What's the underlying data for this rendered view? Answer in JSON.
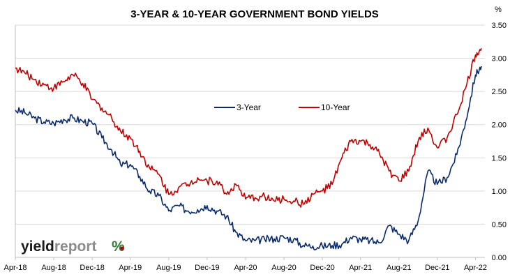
{
  "chart_data": {
    "type": "line",
    "title": "3-YEAR & 10-YEAR GOVERNMENT BOND YIELDS",
    "y_unit": "%",
    "ylim": [
      0,
      3.5
    ],
    "y_ticks": [
      "0.00",
      "0.50",
      "1.00",
      "1.50",
      "2.00",
      "2.50",
      "3.00",
      "3.50"
    ],
    "x_ticks": [
      "Apr-18",
      "Aug-18",
      "Dec-18",
      "Apr-19",
      "Aug-19",
      "Dec-19",
      "Apr-20",
      "Aug-20",
      "Dec-20",
      "Apr-21",
      "Aug-21",
      "Dec-21",
      "Apr-22"
    ],
    "grid": "horizontal",
    "legend": "center",
    "series": [
      {
        "name": "3-Year",
        "color": "#0a2a6b",
        "points": [
          [
            "2018-04-01",
            2.22
          ],
          [
            "2018-05-01",
            2.18
          ],
          [
            "2018-06-01",
            2.1
          ],
          [
            "2018-07-01",
            2.04
          ],
          [
            "2018-08-01",
            2.02
          ],
          [
            "2018-09-01",
            2.08
          ],
          [
            "2018-10-01",
            2.1
          ],
          [
            "2018-11-01",
            2.05
          ],
          [
            "2018-12-01",
            2.02
          ],
          [
            "2019-01-01",
            1.8
          ],
          [
            "2019-02-01",
            1.62
          ],
          [
            "2019-03-01",
            1.4
          ],
          [
            "2019-04-01",
            1.4
          ],
          [
            "2019-05-01",
            1.22
          ],
          [
            "2019-06-01",
            1.0
          ],
          [
            "2019-07-01",
            0.93
          ],
          [
            "2019-08-01",
            0.7
          ],
          [
            "2019-09-01",
            0.78
          ],
          [
            "2019-10-01",
            0.7
          ],
          [
            "2019-11-01",
            0.72
          ],
          [
            "2019-12-01",
            0.78
          ],
          [
            "2020-01-01",
            0.7
          ],
          [
            "2020-02-01",
            0.62
          ],
          [
            "2020-03-01",
            0.38
          ],
          [
            "2020-04-01",
            0.25
          ],
          [
            "2020-05-01",
            0.25
          ],
          [
            "2020-06-01",
            0.27
          ],
          [
            "2020-07-01",
            0.28
          ],
          [
            "2020-08-01",
            0.3
          ],
          [
            "2020-09-01",
            0.27
          ],
          [
            "2020-10-01",
            0.18
          ],
          [
            "2020-11-01",
            0.17
          ],
          [
            "2020-12-01",
            0.17
          ],
          [
            "2021-01-01",
            0.18
          ],
          [
            "2021-02-01",
            0.2
          ],
          [
            "2021-03-01",
            0.3
          ],
          [
            "2021-04-01",
            0.27
          ],
          [
            "2021-05-01",
            0.25
          ],
          [
            "2021-06-01",
            0.22
          ],
          [
            "2021-07-01",
            0.48
          ],
          [
            "2021-08-01",
            0.35
          ],
          [
            "2021-09-01",
            0.25
          ],
          [
            "2021-10-01",
            0.55
          ],
          [
            "2021-11-01",
            1.3
          ],
          [
            "2021-12-01",
            1.1
          ],
          [
            "2022-01-01",
            1.2
          ],
          [
            "2022-02-01",
            1.55
          ],
          [
            "2022-03-01",
            2.05
          ],
          [
            "2022-04-01",
            2.75
          ],
          [
            "2022-04-20",
            2.88
          ]
        ]
      },
      {
        "name": "10-Year",
        "color": "#c00000",
        "points": [
          [
            "2018-04-01",
            2.85
          ],
          [
            "2018-05-01",
            2.78
          ],
          [
            "2018-06-01",
            2.68
          ],
          [
            "2018-07-01",
            2.6
          ],
          [
            "2018-08-01",
            2.55
          ],
          [
            "2018-09-01",
            2.65
          ],
          [
            "2018-10-01",
            2.75
          ],
          [
            "2018-11-01",
            2.62
          ],
          [
            "2018-12-01",
            2.38
          ],
          [
            "2019-01-01",
            2.25
          ],
          [
            "2019-02-01",
            2.1
          ],
          [
            "2019-03-01",
            1.9
          ],
          [
            "2019-04-01",
            1.8
          ],
          [
            "2019-05-01",
            1.6
          ],
          [
            "2019-06-01",
            1.35
          ],
          [
            "2019-07-01",
            1.25
          ],
          [
            "2019-08-01",
            0.95
          ],
          [
            "2019-09-01",
            1.05
          ],
          [
            "2019-10-01",
            1.1
          ],
          [
            "2019-11-01",
            1.2
          ],
          [
            "2019-12-01",
            1.15
          ],
          [
            "2020-01-01",
            1.15
          ],
          [
            "2020-02-01",
            0.95
          ],
          [
            "2020-03-01",
            1.1
          ],
          [
            "2020-04-01",
            0.88
          ],
          [
            "2020-05-01",
            0.9
          ],
          [
            "2020-06-01",
            0.92
          ],
          [
            "2020-07-01",
            0.85
          ],
          [
            "2020-08-01",
            0.88
          ],
          [
            "2020-09-01",
            0.85
          ],
          [
            "2020-10-01",
            0.8
          ],
          [
            "2020-11-01",
            0.95
          ],
          [
            "2020-12-01",
            1.0
          ],
          [
            "2021-01-01",
            1.1
          ],
          [
            "2021-02-01",
            1.5
          ],
          [
            "2021-03-01",
            1.75
          ],
          [
            "2021-04-01",
            1.75
          ],
          [
            "2021-05-01",
            1.7
          ],
          [
            "2021-06-01",
            1.55
          ],
          [
            "2021-07-01",
            1.3
          ],
          [
            "2021-08-01",
            1.15
          ],
          [
            "2021-09-01",
            1.3
          ],
          [
            "2021-10-01",
            1.75
          ],
          [
            "2021-11-01",
            1.95
          ],
          [
            "2021-12-01",
            1.65
          ],
          [
            "2022-01-01",
            1.8
          ],
          [
            "2022-02-01",
            2.15
          ],
          [
            "2022-03-01",
            2.55
          ],
          [
            "2022-04-01",
            3.05
          ],
          [
            "2022-04-20",
            3.15
          ]
        ]
      }
    ]
  },
  "logo": {
    "part1": "yield",
    "part2": "report",
    "symbol": "%",
    "color1": "#1a1a1a",
    "color2": "#8c8c8c",
    "symbol_color": "#2e7d32",
    "symbol_accent": "#c00000"
  }
}
